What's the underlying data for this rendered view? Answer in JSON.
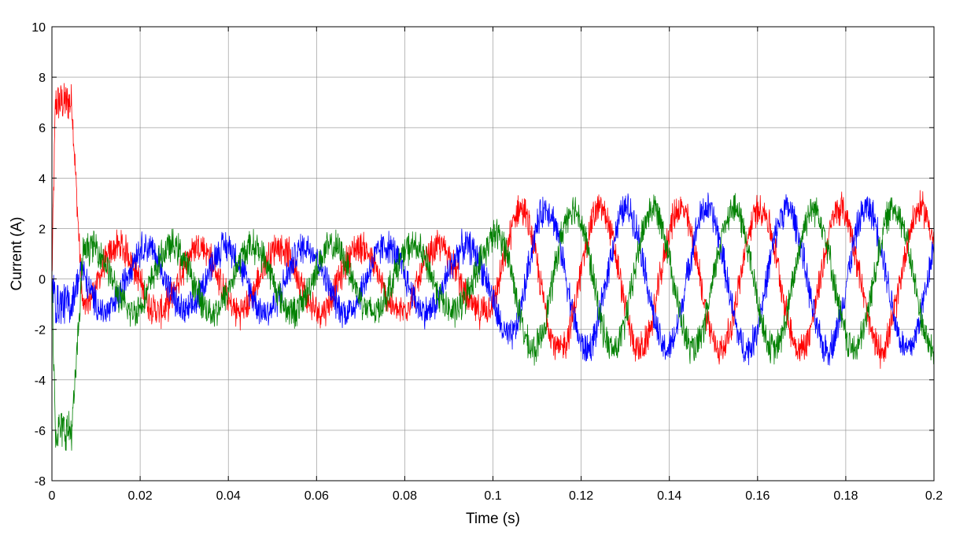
{
  "chart_data": {
    "type": "line",
    "title": "",
    "xlabel": "Time (s)",
    "ylabel": "Current (A)",
    "xlim": [
      0,
      0.2
    ],
    "ylim": [
      -8,
      10
    ],
    "xticks": [
      0,
      0.02,
      0.04,
      0.06,
      0.08,
      0.1,
      0.12,
      0.14,
      0.16,
      0.18,
      0.2
    ],
    "xtick_labels": [
      "0",
      "0.02",
      "0.04",
      "0.06",
      "0.08",
      "0.1",
      "0.12",
      "0.14",
      "0.16",
      "0.18",
      "0.2"
    ],
    "yticks": [
      -8,
      -6,
      -4,
      -2,
      0,
      2,
      4,
      6,
      8,
      10
    ],
    "ytick_labels": [
      "-8",
      "-6",
      "-4",
      "-2",
      "0",
      "2",
      "4",
      "6",
      "8",
      "10"
    ],
    "grid": true,
    "legend": "none",
    "phase_frequency_hz": 55,
    "series": [
      {
        "color": "#ff0000",
        "startup_peak": 7,
        "amplitude_before_0_1s": 1.3,
        "amplitude_after_0_1s": 2.8,
        "phase_deg": 150,
        "ripple": 0.55
      },
      {
        "color": "#0000ff",
        "startup_peak": -1,
        "amplitude_before_0_1s": 1.3,
        "amplitude_after_0_1s": 2.8,
        "phase_deg": 30,
        "ripple": 0.55
      },
      {
        "color": "#008000",
        "startup_peak": -6,
        "amplitude_before_0_1s": 1.3,
        "amplitude_after_0_1s": 2.8,
        "phase_deg": -90,
        "ripple": 0.55
      }
    ]
  }
}
